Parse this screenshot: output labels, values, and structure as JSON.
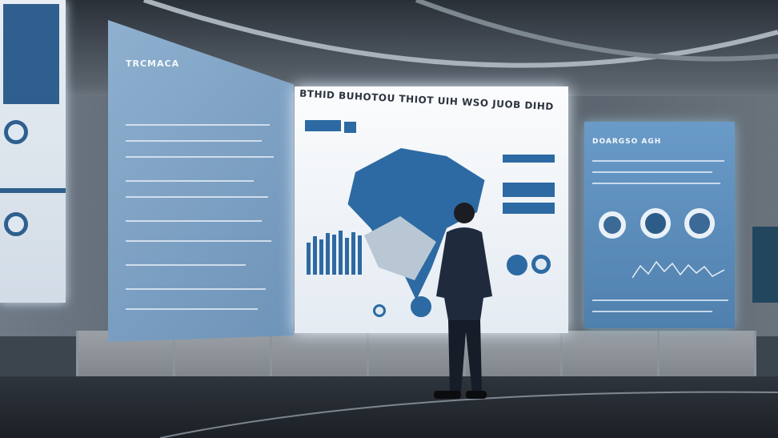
{
  "screens": {
    "left_panel": {
      "heading": "TRCMACA"
    },
    "center_panel": {
      "heading": "BTHID BUHOTOU THIOT UIH WSO JUOB DIHD"
    },
    "right_panel": {
      "heading": "DOARGSO AGH"
    }
  },
  "colors": {
    "screen_blue": "#6a9bc8",
    "map_blue": "#2d6aa3",
    "floor": "#1c2026"
  }
}
